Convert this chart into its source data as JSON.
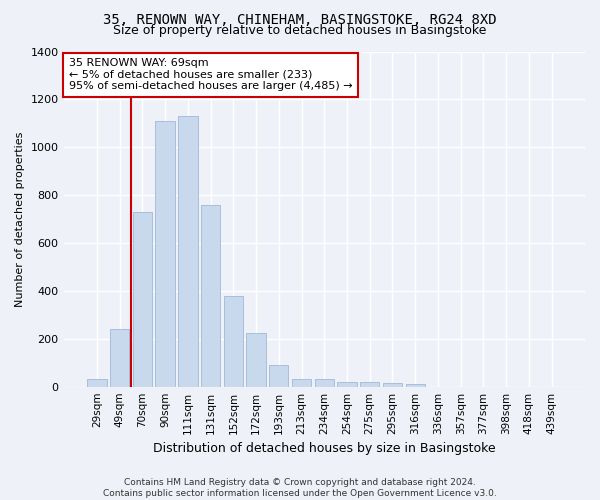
{
  "title1": "35, RENOWN WAY, CHINEHAM, BASINGSTOKE, RG24 8XD",
  "title2": "Size of property relative to detached houses in Basingstoke",
  "xlabel": "Distribution of detached houses by size in Basingstoke",
  "ylabel": "Number of detached properties",
  "categories": [
    "29sqm",
    "49sqm",
    "70sqm",
    "90sqm",
    "111sqm",
    "131sqm",
    "152sqm",
    "172sqm",
    "193sqm",
    "213sqm",
    "234sqm",
    "254sqm",
    "275sqm",
    "295sqm",
    "316sqm",
    "336sqm",
    "357sqm",
    "377sqm",
    "398sqm",
    "418sqm",
    "439sqm"
  ],
  "values": [
    30,
    240,
    730,
    1110,
    1130,
    760,
    380,
    225,
    90,
    30,
    30,
    20,
    20,
    15,
    10,
    0,
    0,
    0,
    0,
    0,
    0
  ],
  "bar_color": "#c9d9ed",
  "bar_edge_color": "#a0b8d8",
  "vline_color": "#cc0000",
  "annotation_text": "35 RENOWN WAY: 69sqm\n← 5% of detached houses are smaller (233)\n95% of semi-detached houses are larger (4,485) →",
  "annotation_box_color": "white",
  "annotation_box_edge": "#cc0000",
  "ylim": [
    0,
    1400
  ],
  "yticks": [
    0,
    200,
    400,
    600,
    800,
    1000,
    1200,
    1400
  ],
  "footer": "Contains HM Land Registry data © Crown copyright and database right 2024.\nContains public sector information licensed under the Open Government Licence v3.0.",
  "bg_color": "#eef2f8",
  "grid_color": "#ffffff",
  "title1_fontsize": 10,
  "title2_fontsize": 9
}
